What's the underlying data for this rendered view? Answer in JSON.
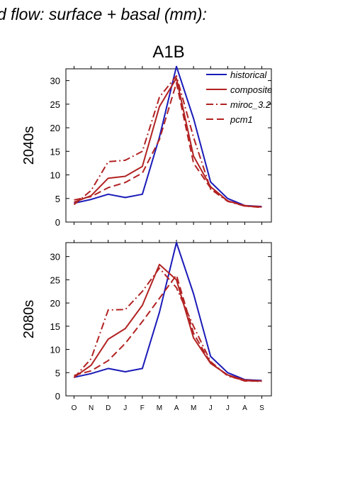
{
  "title": "d flow: surface + basal (mm):",
  "scenario": "A1B",
  "colors": {
    "historical": "#1a1ab8",
    "projection": "#b22222"
  },
  "chart_data": [
    {
      "type": "line",
      "panel": "2040s",
      "ylabel": "2040s",
      "ylim": [
        0,
        32.5
      ],
      "yticks": [
        0,
        5,
        10,
        15,
        20,
        25,
        30
      ],
      "categories": [
        "O",
        "N",
        "D",
        "J",
        "F",
        "M",
        "A",
        "M",
        "J",
        "J",
        "A",
        "S"
      ],
      "legend": "top-right",
      "series": [
        {
          "name": "historical",
          "style": "solid",
          "color": "#1a1ab8",
          "values": [
            4.0,
            4.8,
            5.9,
            5.2,
            5.9,
            18.0,
            33.0,
            22.0,
            8.5,
            5.0,
            3.5,
            3.3
          ]
        },
        {
          "name": "composite",
          "style": "solid",
          "color": "#b22222",
          "values": [
            4.2,
            5.6,
            9.3,
            9.7,
            11.8,
            24.5,
            30.5,
            14.0,
            7.5,
            4.5,
            3.4,
            3.2
          ]
        },
        {
          "name": "miroc_3.2",
          "style": "dashdot",
          "color": "#b22222",
          "values": [
            3.7,
            6.7,
            12.8,
            13.1,
            15.0,
            26.5,
            31.0,
            18.0,
            7.0,
            4.4,
            3.4,
            3.1
          ]
        },
        {
          "name": "pcm1",
          "style": "dash",
          "color": "#b22222",
          "values": [
            4.7,
            5.4,
            7.3,
            8.4,
            10.4,
            17.5,
            29.5,
            12.5,
            7.2,
            4.5,
            3.5,
            3.2
          ]
        }
      ]
    },
    {
      "type": "line",
      "panel": "2080s",
      "ylabel": "2080s",
      "ylim": [
        0,
        33
      ],
      "yticks": [
        0,
        5,
        10,
        15,
        20,
        25,
        30
      ],
      "categories": [
        "O",
        "N",
        "D",
        "J",
        "F",
        "M",
        "A",
        "M",
        "J",
        "J",
        "A",
        "S"
      ],
      "series": [
        {
          "name": "historical",
          "style": "solid",
          "color": "#1a1ab8",
          "values": [
            4.0,
            4.8,
            5.9,
            5.2,
            5.9,
            18.0,
            33.0,
            22.0,
            8.5,
            5.0,
            3.5,
            3.3
          ]
        },
        {
          "name": "composite",
          "style": "solid",
          "color": "#b22222",
          "values": [
            4.0,
            6.6,
            12.2,
            14.5,
            19.5,
            28.3,
            25.0,
            12.5,
            7.0,
            4.5,
            3.4,
            3.2
          ]
        },
        {
          "name": "miroc_3.2",
          "style": "dashdot",
          "color": "#b22222",
          "values": [
            3.9,
            8.0,
            18.5,
            18.6,
            22.5,
            27.5,
            23.3,
            15.0,
            7.4,
            4.3,
            3.3,
            3.1
          ]
        },
        {
          "name": "pcm1",
          "style": "dash",
          "color": "#b22222",
          "values": [
            4.4,
            5.4,
            7.6,
            11.3,
            16.0,
            21.0,
            26.0,
            13.5,
            7.1,
            4.4,
            3.2,
            3.2
          ]
        }
      ]
    }
  ]
}
